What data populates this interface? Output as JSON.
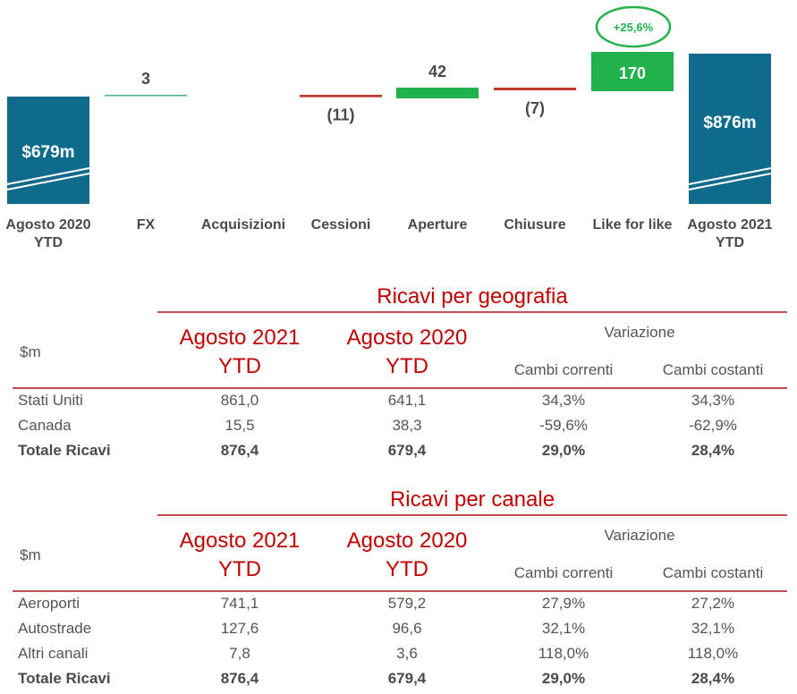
{
  "chart_data": {
    "type": "bar",
    "subtype": "waterfall",
    "categories": [
      "Agosto 2020\nYTD",
      "FX",
      "Acquisizioni",
      "Cessioni",
      "Aperture",
      "Chiusure",
      "Like for like",
      "Agosto 2021\nYTD"
    ],
    "values": [
      679,
      3,
      0,
      -11,
      42,
      -7,
      170,
      876
    ],
    "kinds": [
      "total",
      "delta",
      "delta",
      "delta",
      "delta",
      "delta",
      "delta",
      "total"
    ],
    "value_labels": [
      "$679m",
      "3",
      "",
      "(11)",
      "42",
      "(7)",
      "170",
      "$876m"
    ],
    "annotation": "+25,6%",
    "colors": {
      "total": "#0e6b8c",
      "positive": "#22b24c",
      "negative": "#c0392b",
      "fx_line": "#3fb58a"
    }
  },
  "tables": [
    {
      "title": "Ricavi per geografia",
      "unit": "$m",
      "col_year_1": [
        "Agosto 2021",
        "YTD"
      ],
      "col_year_2": [
        "Agosto 2020",
        "YTD"
      ],
      "variation_header": "Variazione",
      "sub_headers": [
        "Cambi correnti",
        "Cambi costanti"
      ],
      "rows": [
        {
          "label": "Stati Uniti",
          "values": [
            "861,0",
            "641,1",
            "34,3%",
            "34,3%"
          ],
          "bold": false
        },
        {
          "label": "Canada",
          "values": [
            "15,5",
            "38,3",
            "-59,6%",
            "-62,9%"
          ],
          "bold": false
        },
        {
          "label": "Totale Ricavi",
          "values": [
            "876,4",
            "679,4",
            "29,0%",
            "28,4%"
          ],
          "bold": true
        }
      ]
    },
    {
      "title": "Ricavi per canale",
      "unit": "$m",
      "col_year_1": [
        "Agosto 2021",
        "YTD"
      ],
      "col_year_2": [
        "Agosto 2020",
        "YTD"
      ],
      "variation_header": "Variazione",
      "sub_headers": [
        "Cambi correnti",
        "Cambi costanti"
      ],
      "rows": [
        {
          "label": "Aeroporti",
          "values": [
            "741,1",
            "579,2",
            "27,9%",
            "27,2%"
          ],
          "bold": false
        },
        {
          "label": "Autostrade",
          "values": [
            "127,6",
            "96,6",
            "32,1%",
            "32,1%"
          ],
          "bold": false
        },
        {
          "label": "Altri canali",
          "values": [
            "7,8",
            "3,6",
            "118,0%",
            "118,0%"
          ],
          "bold": false
        },
        {
          "label": "Totale Ricavi",
          "values": [
            "876,4",
            "679,4",
            "29,0%",
            "28,4%"
          ],
          "bold": true
        }
      ]
    }
  ]
}
